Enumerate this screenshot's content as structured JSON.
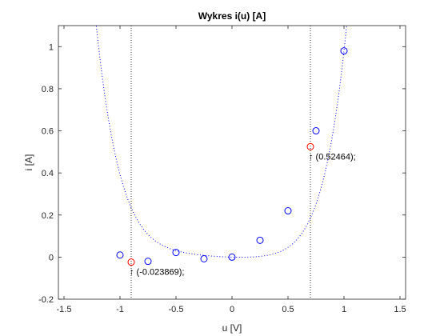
{
  "chart_data": {
    "type": "scatter",
    "title": "Wykres i(u) [A]",
    "xlabel": "u [V]",
    "ylabel": "i [A]",
    "xlim": [
      -1.55,
      1.55
    ],
    "ylim": [
      -0.2,
      1.1
    ],
    "xticks": [
      -1.5,
      -1,
      -0.5,
      0,
      0.5,
      1,
      1.5
    ],
    "xtick_labels": [
      "-1.5",
      "-1",
      "-0.5",
      "0",
      "0.5",
      "1",
      "1.5"
    ],
    "yticks": [
      -0.2,
      0,
      0.2,
      0.4,
      0.6,
      0.8,
      1
    ],
    "ytick_labels": [
      "-0.2",
      "0",
      "0.2",
      "0.4",
      "0.6",
      "0.8",
      "1"
    ],
    "grid": false,
    "series": [
      {
        "kind": "markers",
        "marker": "circle",
        "color": "#0000ff",
        "x": [
          -1,
          -0.75,
          -0.5,
          -0.25,
          0,
          0.25,
          0.5,
          0.75,
          1
        ],
        "y": [
          0.01,
          -0.02,
          0.022,
          -0.008,
          0,
          0.08,
          0.22,
          0.6,
          0.98
        ]
      },
      {
        "kind": "interpolating-curve",
        "style": "dotted",
        "color": "#0000ff",
        "x_range": [
          -1.55,
          1.1
        ],
        "polynomial_coefficients_ascending": [
          0,
          -0.01381,
          0.0811,
          0.05244,
          0.19076,
          0.25486,
          0.41464
        ]
      },
      {
        "kind": "markers",
        "marker": "circle",
        "color": "#ff0000",
        "x": [
          -0.9,
          0.7
        ],
        "y": [
          -0.023869,
          0.52464
        ]
      }
    ],
    "vertical_lines": [
      {
        "x": -0.9,
        "style": "dotted",
        "color": "#000000"
      },
      {
        "x": 0.7,
        "style": "dotted",
        "color": "#000000"
      }
    ],
    "annotations": [
      {
        "x": -0.9,
        "y": -0.023869,
        "text": "↑ (-0.023869);"
      },
      {
        "x": 0.7,
        "y": 0.52464,
        "text": "↑ (0.52464);"
      }
    ]
  }
}
